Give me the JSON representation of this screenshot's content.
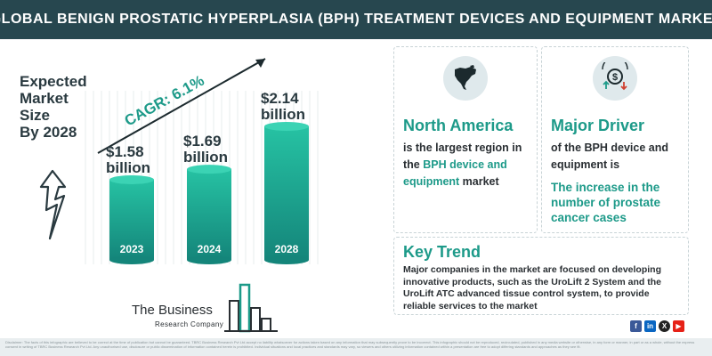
{
  "header": {
    "title": "GLOBAL BENIGN PROSTATIC HYPERPLASIA (BPH) TREATMENT DEVICES AND EQUIPMENT MARKET"
  },
  "left": {
    "label_lines": [
      "Expected",
      "Market",
      "Size",
      "By 2028"
    ]
  },
  "colors": {
    "header_bg": "#27474f",
    "accent_teal": "#1d9a89",
    "bar_gradient_top": "#26c2a3",
    "bar_gradient_bottom": "#14857a",
    "text_dark": "#2a2f33"
  },
  "chart_data": {
    "type": "bar",
    "categories": [
      "2023",
      "2024",
      "2028"
    ],
    "values": [
      1.58,
      1.69,
      2.14
    ],
    "value_labels": [
      [
        "$1.58",
        "billion"
      ],
      [
        "$1.69",
        "billion"
      ],
      [
        "$2.14",
        "billion"
      ]
    ],
    "unit": "billion",
    "annotation": "CAGR: 6.1%",
    "title": "",
    "xlabel": "",
    "ylabel": ""
  },
  "cards": {
    "north_america": {
      "icon": "north-america-map-icon",
      "title": "North America",
      "body_lines": [
        {
          "pre": "is the largest region in",
          "hl": ""
        },
        {
          "pre": "the ",
          "hl": "BPH device and"
        },
        {
          "pre": "",
          "hl": "equipment",
          "post": " market"
        }
      ]
    },
    "major_driver": {
      "icon": "dollar-exchange-icon",
      "title": "Major Driver",
      "body_lines": [
        "of the BPH device and",
        "equipment is"
      ],
      "highlight": "The increase in the number of prostate cancer cases"
    },
    "key_trend": {
      "title": "Key Trend",
      "body": "Major companies in the market are focused on developing innovative products, such as the UroLift 2 System and the UroLift ATC advanced tissue control system, to provide reliable services to the market"
    }
  },
  "social": {
    "facebook": "f",
    "linkedin": "in",
    "x": "X",
    "youtube": "▶"
  },
  "logo": {
    "name": "The Business",
    "sub": "Research Company"
  },
  "footer": {
    "disclaimer": "Disclaimer: The facts of this infographic are believed to be correct at the time of publication but cannot be guaranteed. TBRC Business Research Pvt Ltd accept no liability whatsoever for actions taken based on any information that may subsequently prove to be incorrect. This infographic should not be reproduced, recirculated, published in any media website or otherwise, in any form or manner, in part or as a whole, without the express consent in writing of TBRC Business Research Pvt Ltd. Any unauthorised use, disclosure or public dissemination of information contained herein is prohibited. Individual situations and local practices and standards may vary, so viewers and others utilizing information contained within a presentation are free to adopt differing standards and approaches as they see fit."
  }
}
